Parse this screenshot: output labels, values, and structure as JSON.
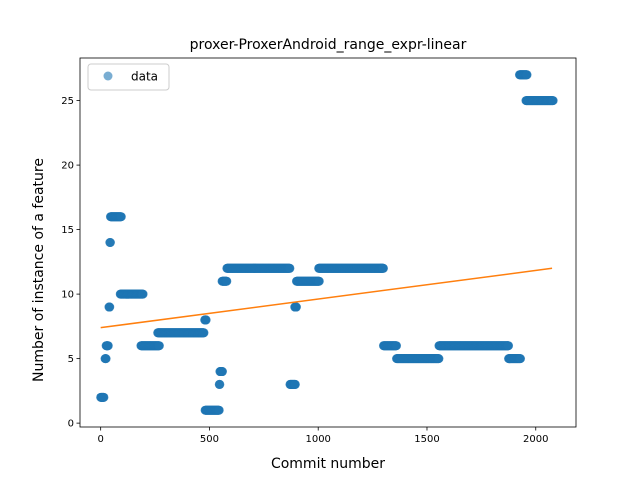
{
  "chart_data": {
    "type": "scatter",
    "title": "proxer-ProxerAndroid_range_expr-linear",
    "xlabel": "Commit number",
    "ylabel": "Number of instance of a feature",
    "xlim": [
      -95,
      2185
    ],
    "ylim": [
      -0.3,
      28.3
    ],
    "xticks": [
      0,
      500,
      1000,
      1500,
      2000
    ],
    "yticks": [
      0,
      5,
      10,
      15,
      20,
      25
    ],
    "grid": false,
    "legend": {
      "position": "top-left",
      "entries": [
        "data"
      ]
    },
    "colors": {
      "data": "#1f77b4",
      "fit": "#ff7f0e"
    },
    "segments": [
      {
        "x0": 0,
        "x1": 15,
        "y": 2
      },
      {
        "x0": 20,
        "x1": 25,
        "y": 5
      },
      {
        "x0": 25,
        "x1": 35,
        "y": 6
      },
      {
        "x0": 38,
        "x1": 42,
        "y": 9
      },
      {
        "x0": 42,
        "x1": 45,
        "y": 14
      },
      {
        "x0": 45,
        "x1": 95,
        "y": 16
      },
      {
        "x0": 90,
        "x1": 195,
        "y": 10
      },
      {
        "x0": 185,
        "x1": 270,
        "y": 6
      },
      {
        "x0": 262,
        "x1": 475,
        "y": 7
      },
      {
        "x0": 478,
        "x1": 485,
        "y": 8
      },
      {
        "x0": 480,
        "x1": 545,
        "y": 1
      },
      {
        "x0": 545,
        "x1": 548,
        "y": 3
      },
      {
        "x0": 548,
        "x1": 560,
        "y": 4
      },
      {
        "x0": 558,
        "x1": 580,
        "y": 11
      },
      {
        "x0": 580,
        "x1": 870,
        "y": 12
      },
      {
        "x0": 870,
        "x1": 895,
        "y": 3
      },
      {
        "x0": 892,
        "x1": 900,
        "y": 9
      },
      {
        "x0": 900,
        "x1": 1005,
        "y": 11
      },
      {
        "x0": 1002,
        "x1": 1300,
        "y": 12
      },
      {
        "x0": 1300,
        "x1": 1360,
        "y": 6
      },
      {
        "x0": 1360,
        "x1": 1555,
        "y": 5
      },
      {
        "x0": 1555,
        "x1": 1875,
        "y": 6
      },
      {
        "x0": 1875,
        "x1": 1930,
        "y": 5
      },
      {
        "x0": 1925,
        "x1": 1960,
        "y": 27
      },
      {
        "x0": 1955,
        "x1": 2080,
        "y": 25
      }
    ],
    "fit": {
      "x": [
        0,
        2075
      ],
      "y": [
        7.4,
        12.0
      ]
    }
  }
}
